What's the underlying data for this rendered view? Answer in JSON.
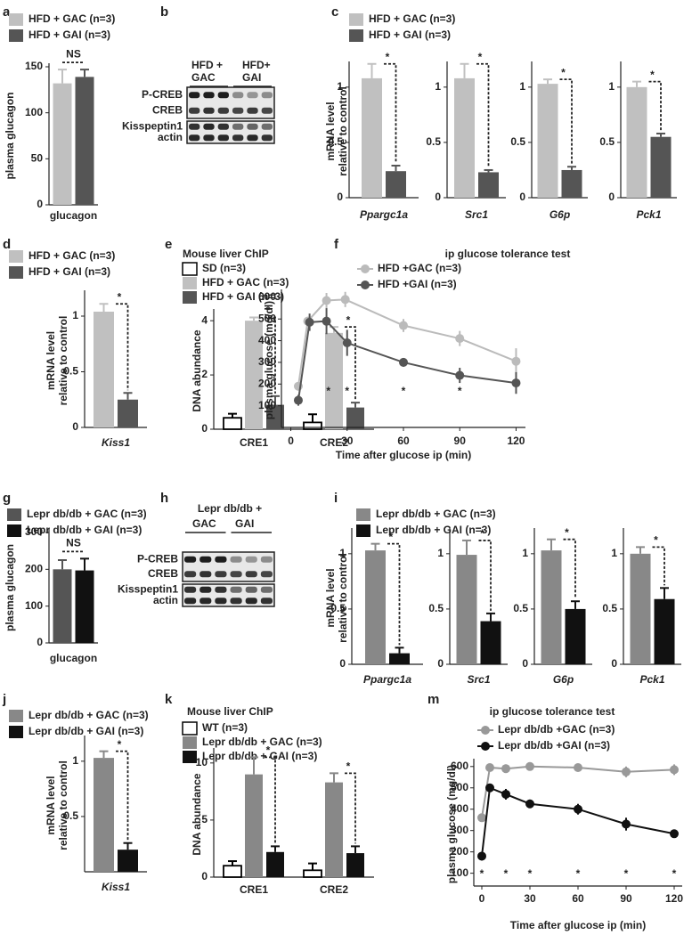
{
  "chart_data": [
    {
      "type": "bar",
      "label": "a",
      "series": [
        {
          "name": "HFD + GAC (n=3)",
          "color": "#c0c0c0"
        },
        {
          "name": "HFD + GAI (n=3)",
          "color": "#555555"
        }
      ],
      "ylabel": [
        "plasma glucagon"
      ],
      "ylim": [
        0,
        150
      ],
      "yticks": [
        0,
        50,
        100,
        150
      ],
      "axes": [
        {
          "groups": [
            {
              "category": "glucagon",
              "values": [
                132,
                139
              ],
              "errors": [
                15,
                8
              ],
              "annotation": "NS"
            }
          ]
        }
      ]
    },
    {
      "type": "blot",
      "label": "b",
      "lanes": [
        [
          "HFD +",
          "GAC"
        ],
        [
          "HFD+",
          "GAI"
        ]
      ],
      "rows": [
        "P-CREB",
        "CREB",
        "Kisspeptin1",
        "actin"
      ]
    },
    {
      "type": "bar",
      "label": "c",
      "italic_categories": true,
      "series": [
        {
          "name": "HFD + GAC (n=3)",
          "color": "#c0c0c0"
        },
        {
          "name": "HFD + GAI (n=3)",
          "color": "#555555"
        }
      ],
      "ylabel": [
        "mRNA level",
        "relative to control"
      ],
      "ylim": [
        0,
        1.2
      ],
      "yticks": [
        0,
        0.5,
        1
      ],
      "axes": [
        {
          "groups": [
            {
              "category": "Ppargc1a",
              "values": [
                1.08,
                0.24
              ],
              "errors": [
                0.13,
                0.05
              ],
              "annotation": "*"
            }
          ]
        },
        {
          "groups": [
            {
              "category": "Src1",
              "values": [
                1.08,
                0.23
              ],
              "errors": [
                0.13,
                0.02
              ],
              "annotation": "*"
            }
          ]
        },
        {
          "groups": [
            {
              "category": "G6p",
              "values": [
                1.03,
                0.25
              ],
              "errors": [
                0.04,
                0.03
              ],
              "annotation": "*"
            }
          ]
        },
        {
          "groups": [
            {
              "category": "Pck1",
              "values": [
                1.0,
                0.55
              ],
              "errors": [
                0.05,
                0.03
              ],
              "annotation": "*"
            }
          ]
        }
      ]
    },
    {
      "type": "bar",
      "label": "d",
      "italic_categories": true,
      "series": [
        {
          "name": "HFD + GAC (n=3)",
          "color": "#c0c0c0"
        },
        {
          "name": "HFD + GAI (n=3)",
          "color": "#555555"
        }
      ],
      "ylabel": [
        "mRNA level",
        "relative to control"
      ],
      "ylim": [
        0,
        1.2
      ],
      "yticks": [
        0,
        0.5,
        1
      ],
      "axes": [
        {
          "groups": [
            {
              "category": "Kiss1",
              "values": [
                1.04,
                0.25
              ],
              "errors": [
                0.07,
                0.06
              ],
              "annotation": "*"
            }
          ]
        }
      ]
    },
    {
      "type": "bar",
      "label": "e",
      "title": "Mouse liver ChIP",
      "series": [
        {
          "name": "SD (n=3)",
          "color": "#ffffff"
        },
        {
          "name": "HFD + GAC (n=3)",
          "color": "#c0c0c0"
        },
        {
          "name": "HFD + GAI (n=3)",
          "color": "#555555"
        }
      ],
      "ylabel": [
        "DNA abundance"
      ],
      "ylim": [
        0,
        4.3
      ],
      "yticks": [
        0,
        2,
        4
      ],
      "axes": [
        {
          "groups": [
            {
              "category": "CRE1",
              "values": [
                0.42,
                4.0,
                0.9
              ],
              "errors": [
                0.15,
                0.12,
                0.32
              ],
              "annotation": "*"
            },
            {
              "category": "CRE2",
              "values": [
                0.25,
                3.55,
                0.8
              ],
              "errors": [
                0.3,
                0.22,
                0.18
              ],
              "annotation": "*"
            }
          ]
        }
      ]
    },
    {
      "type": "line",
      "label": "f",
      "title": "ip glucose tolerance test",
      "series": [
        {
          "name": "HFD +GAC (n=3)",
          "color": "#bbbbbb",
          "x": [
            4,
            9,
            19,
            29,
            60,
            90,
            120
          ],
          "values": [
            190,
            490,
            585,
            590,
            470,
            410,
            305
          ],
          "errors": [
            15,
            20,
            35,
            35,
            30,
            35,
            60
          ]
        },
        {
          "name": "HFD +GAI (n=3)",
          "color": "#555555",
          "x": [
            4,
            10,
            19,
            30,
            60,
            90,
            120
          ],
          "values": [
            125,
            485,
            490,
            390,
            300,
            240,
            205
          ],
          "errors": [
            25,
            40,
            60,
            60,
            20,
            35,
            50
          ]
        }
      ],
      "xlabel": "Time after glucose ip (min)",
      "ylabel": [
        "plasma glucose (mg/dl)"
      ],
      "xlim": [
        -5,
        125
      ],
      "xticks": [
        0,
        30,
        60,
        90,
        120
      ],
      "ylim": [
        0,
        620
      ],
      "yticks": [
        100,
        200,
        300,
        400,
        500,
        600
      ],
      "annotations": [
        {
          "x": 20,
          "text": "*"
        },
        {
          "x": 30,
          "text": "*"
        },
        {
          "x": 60,
          "text": "*"
        },
        {
          "x": 90,
          "text": "*"
        }
      ]
    },
    {
      "type": "bar",
      "label": "g",
      "series": [
        {
          "name": "Lepr db/db + GAC (n=3)",
          "color": "#555555"
        },
        {
          "name": "Lepr db/db + GAI (n=3)",
          "color": "#111111"
        }
      ],
      "ylabel": [
        "plasma glucagon"
      ],
      "ylim": [
        0,
        300
      ],
      "yticks": [
        0,
        100,
        200,
        300
      ],
      "axes": [
        {
          "groups": [
            {
              "category": "glucagon",
              "values": [
                200,
                197
              ],
              "errors": [
                25,
                32
              ],
              "annotation": "NS"
            }
          ]
        }
      ]
    },
    {
      "type": "blot",
      "label": "h",
      "header": [
        "Lepr db/db +"
      ],
      "lanes": [
        [
          "GAC"
        ],
        [
          "GAI"
        ]
      ],
      "rows": [
        "P-CREB",
        "CREB",
        "Kisspeptin1",
        "actin"
      ]
    },
    {
      "type": "bar",
      "label": "i",
      "italic_categories": true,
      "series": [
        {
          "name": "Lepr db/db + GAC (n=3)",
          "color": "#888888"
        },
        {
          "name": "Lepr db/db + GAI (n=3)",
          "color": "#111111"
        }
      ],
      "ylabel": [
        "mRNA level",
        "relative to control"
      ],
      "ylim": [
        0,
        1.2
      ],
      "yticks": [
        0,
        0.5,
        1
      ],
      "axes": [
        {
          "groups": [
            {
              "category": "Ppargc1a",
              "values": [
                1.03,
                0.1
              ],
              "errors": [
                0.06,
                0.05
              ],
              "annotation": "*"
            }
          ]
        },
        {
          "groups": [
            {
              "category": "Src1",
              "values": [
                0.99,
                0.39
              ],
              "errors": [
                0.13,
                0.07
              ],
              "annotation": "*"
            }
          ]
        },
        {
          "groups": [
            {
              "category": "G6p",
              "values": [
                1.03,
                0.5
              ],
              "errors": [
                0.1,
                0.07
              ],
              "annotation": "*"
            }
          ]
        },
        {
          "groups": [
            {
              "category": "Pck1",
              "values": [
                1.0,
                0.59
              ],
              "errors": [
                0.06,
                0.1
              ],
              "annotation": "*"
            }
          ]
        }
      ]
    },
    {
      "type": "bar",
      "label": "j",
      "italic_categories": true,
      "series": [
        {
          "name": "Lepr db/db + GAC (n=3)",
          "color": "#888888"
        },
        {
          "name": "Lepr db/db + GAI (n=3)",
          "color": "#111111"
        }
      ],
      "ylabel": [
        "mRNA level",
        "relative to control"
      ],
      "ylim": [
        0,
        1.2
      ],
      "yticks": [
        0.5,
        1
      ],
      "axes": [
        {
          "groups": [
            {
              "category": "Kiss1",
              "values": [
                1.03,
                0.2
              ],
              "errors": [
                0.06,
                0.06
              ],
              "annotation": "*"
            }
          ]
        }
      ]
    },
    {
      "type": "bar",
      "label": "k",
      "title": "Mouse liver ChIP",
      "series": [
        {
          "name": "WT (n=3)",
          "color": "#ffffff"
        },
        {
          "name": "Lepr db/db + GAC (n=3)",
          "color": "#888888"
        },
        {
          "name": "Lepr db/db + GAI (n=3)",
          "color": "#111111"
        }
      ],
      "ylabel": [
        "DNA abundance"
      ],
      "ylim": [
        0,
        11
      ],
      "yticks": [
        0,
        5,
        10
      ],
      "axes": [
        {
          "groups": [
            {
              "category": "CRE1",
              "values": [
                1.0,
                9.0,
                2.2
              ],
              "errors": [
                0.4,
                1.5,
                0.5
              ],
              "annotation": "*"
            },
            {
              "category": "CRE2",
              "values": [
                0.6,
                8.3,
                2.1
              ],
              "errors": [
                0.6,
                0.8,
                0.6
              ],
              "annotation": "*"
            }
          ]
        }
      ]
    },
    {
      "type": "line",
      "label": "m",
      "title": "ip glucose tolerance test",
      "series": [
        {
          "name": "Lepr db/db +GAC (n=3)",
          "color": "#999999",
          "x": [
            0,
            5,
            15,
            30,
            60,
            90,
            120
          ],
          "values": [
            360,
            595,
            590,
            600,
            595,
            575,
            585
          ],
          "errors": [
            15,
            15,
            20,
            15,
            10,
            25,
            25
          ]
        },
        {
          "name": "Lepr db/db +GAI (n=3)",
          "color": "#111111",
          "x": [
            0,
            5,
            15,
            30,
            60,
            90,
            120
          ],
          "values": [
            180,
            500,
            470,
            425,
            400,
            330,
            285
          ],
          "errors": [
            20,
            15,
            25,
            20,
            25,
            30,
            15
          ]
        }
      ],
      "xlabel": "Time after glucose ip (min)",
      "ylabel": [
        "plasma glucose (mg/dl)"
      ],
      "xlim": [
        -5,
        125
      ],
      "xticks": [
        0,
        30,
        60,
        90,
        120
      ],
      "ylim": [
        40,
        620
      ],
      "yticks": [
        100,
        200,
        300,
        400,
        500,
        600
      ],
      "annotations": [
        {
          "x": 0,
          "text": "*"
        },
        {
          "x": 15,
          "text": "*"
        },
        {
          "x": 30,
          "text": "*"
        },
        {
          "x": 60,
          "text": "*"
        },
        {
          "x": 90,
          "text": "*"
        },
        {
          "x": 120,
          "text": "*"
        }
      ]
    }
  ]
}
